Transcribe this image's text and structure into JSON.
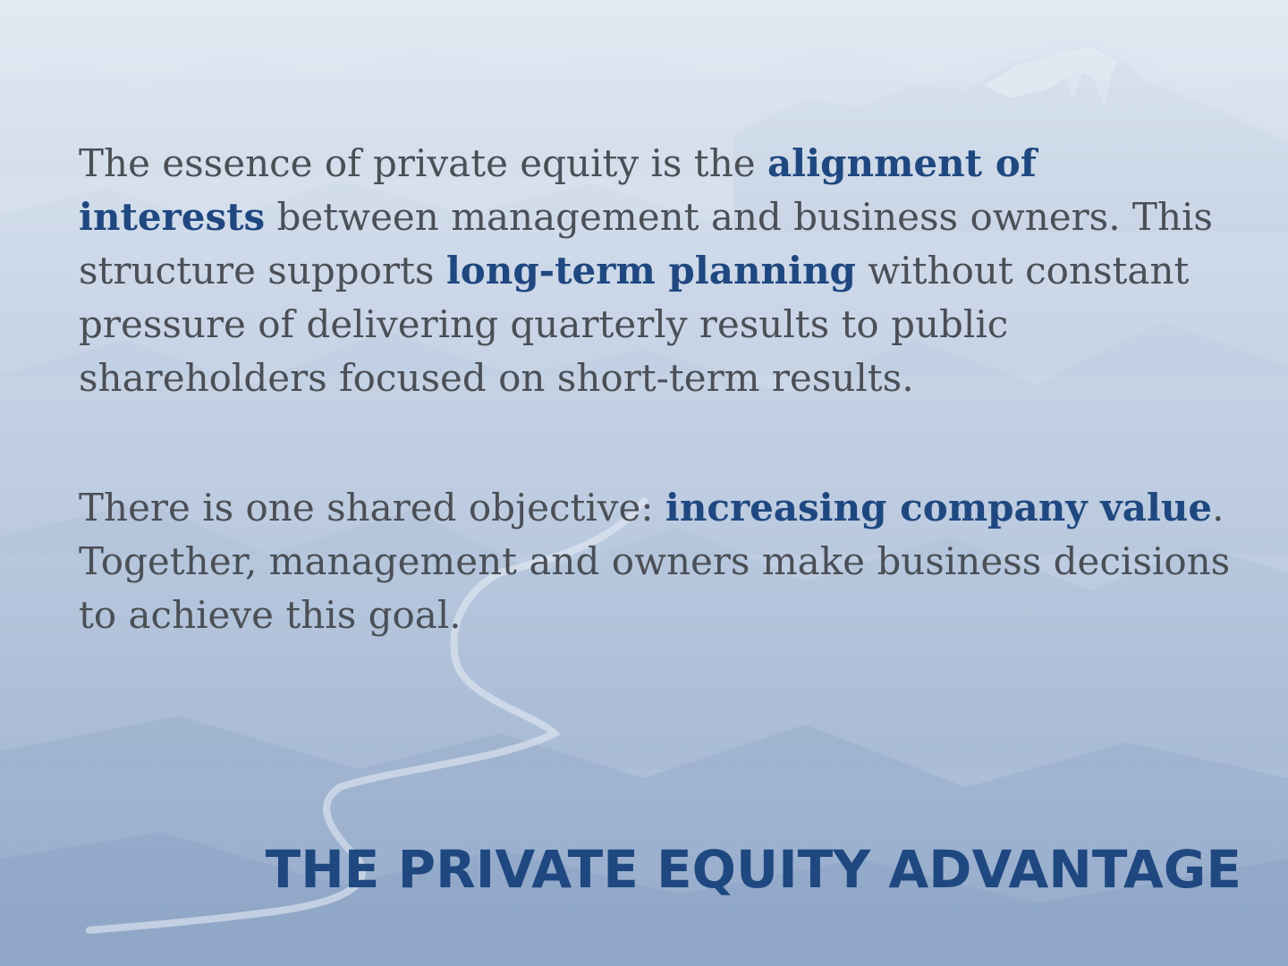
{
  "paragraph1": {
    "part1": "The essence of private equity is the ",
    "highlight1": "alignment of interests",
    "part2": " between management and business owners. This structure supports ",
    "highlight2": "long-term planning",
    "part3": " without constant pressure of delivering quarterly results to public shareholders focused on short-term results."
  },
  "paragraph2": {
    "part1": "There is one shared objective: ",
    "highlight1": "increasing company value",
    "part2": ". Together, management and owners make business decisions to achieve this goal."
  },
  "title": "THE PRIVATE EQUITY ADVANTAGE",
  "colors": {
    "accent": "#1f4880",
    "body_text": "#4b4f56",
    "background": "#c9d6e8"
  }
}
